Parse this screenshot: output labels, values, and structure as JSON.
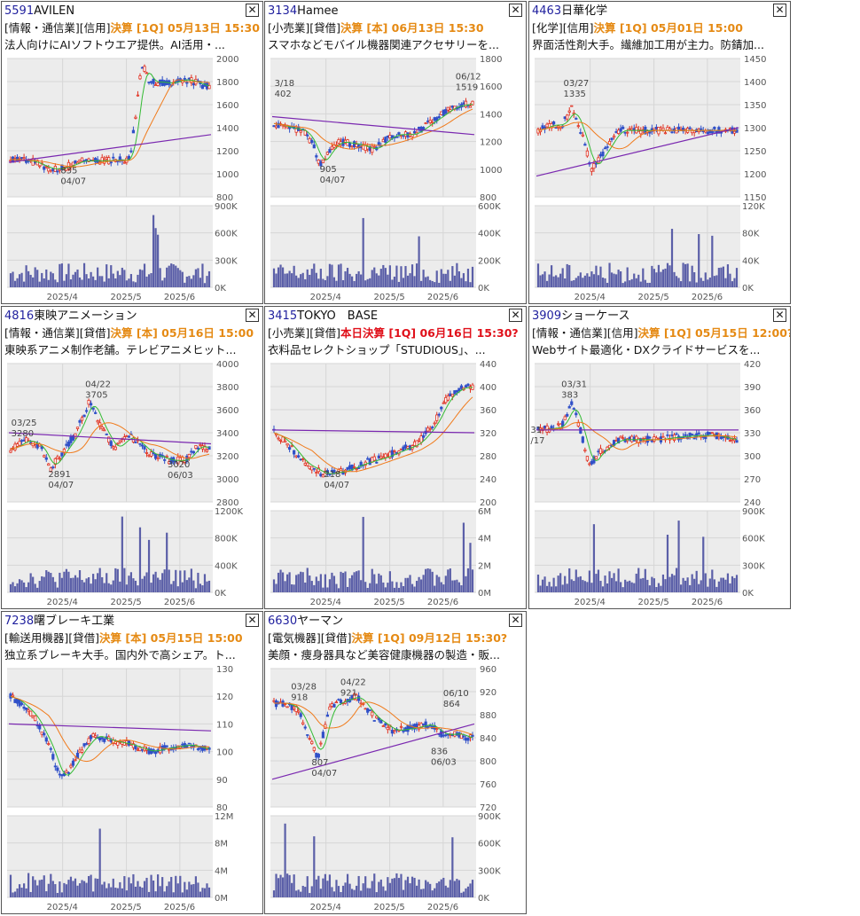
{
  "colors": {
    "code": "#1f1f9e",
    "earnings": "#e58a14",
    "earnings_today": "#e0101a",
    "ma_short": "#33bb33",
    "ma_mid": "#f07a1a",
    "ma_long": "#7a28b0",
    "candle_up": "#e03020",
    "candle_down": "#3050c8",
    "volume": "#5b5fa8",
    "plot_bg": "#ececec"
  },
  "x_labels": [
    "2025/4",
    "2025/5",
    "2025/6"
  ],
  "close_icon": "close-x-icon",
  "cards": [
    {
      "code": "5591",
      "name": "AVILEN",
      "tags": "[情報・通信業][信用]",
      "earnings": "決算 [1Q] 05月13日 15:30",
      "today": false,
      "desc": "法人向けにAIソフトウエア提供。AI活用・...",
      "price_ticks": [
        "2000",
        "1800",
        "1600",
        "1400",
        "1200",
        "1000",
        "800"
      ],
      "vol_ticks": [
        "900K",
        "600K",
        "300K",
        "0K"
      ],
      "annotations": [
        {
          "text": "835",
          "ann": "low"
        },
        {
          "text": "04/07",
          "ann": "low"
        }
      ]
    },
    {
      "code": "3134",
      "name": "Hamee",
      "tags": "[小売業][貸借]",
      "earnings": "決算 [本] 06月13日 15:30",
      "today": false,
      "desc": "スマホなどモバイル機器関連アクセサリーを...",
      "price_ticks": [
        "1800",
        "1600",
        "1400",
        "1200",
        "1000",
        "800"
      ],
      "vol_ticks": [
        "600K",
        "400K",
        "200K",
        "0K"
      ],
      "annotations": [
        {
          "text": "3/18",
          "ann": "a"
        },
        {
          "text": "402",
          "ann": "a"
        },
        {
          "text": "905",
          "ann": "b"
        },
        {
          "text": "04/07",
          "ann": "b"
        },
        {
          "text": "06/12",
          "ann": "c"
        },
        {
          "text": "1519",
          "ann": "c"
        }
      ]
    },
    {
      "code": "4463",
      "name": "日華化学",
      "tags": "[化学][信用]",
      "earnings": "決算 [1Q] 05月01日 15:00",
      "today": false,
      "desc": "界面活性剤大手。繊維加工用が主力。防錆加...",
      "price_ticks": [
        "1450",
        "1400",
        "1350",
        "1300",
        "1250",
        "1200",
        "1150"
      ],
      "vol_ticks": [
        "120K",
        "80K",
        "40K",
        "0K"
      ],
      "annotations": [
        {
          "text": "03/27",
          "ann": "a"
        },
        {
          "text": "1335",
          "ann": "a"
        }
      ]
    },
    {
      "code": "4816",
      "name": "東映アニメーション",
      "tags": "[情報・通信業][貸借]",
      "earnings": "決算 [本] 05月16日 15:00",
      "today": false,
      "desc": "東映系アニメ制作老舗。テレビアニメヒット...",
      "price_ticks": [
        "4000",
        "3800",
        "3600",
        "3400",
        "3200",
        "3000",
        "2800"
      ],
      "vol_ticks": [
        "1200K",
        "800K",
        "400K",
        "0K"
      ],
      "annotations": [
        {
          "text": "03/25",
          "ann": "a"
        },
        {
          "text": "3280",
          "ann": "a"
        },
        {
          "text": "04/22",
          "ann": "b"
        },
        {
          "text": "3705",
          "ann": "b"
        },
        {
          "text": "2891",
          "ann": "c"
        },
        {
          "text": "04/07",
          "ann": "c"
        },
        {
          "text": "3020",
          "ann": "d"
        },
        {
          "text": "06/03",
          "ann": "d"
        }
      ]
    },
    {
      "code": "3415",
      "name": "TOKYO　BASE",
      "tags": "[小売業][貸借]",
      "earnings": "本日決算 [1Q] 06月16日 15:30?",
      "today": true,
      "desc": "衣料品セレクトショップ「STUDIOUS」、...",
      "price_ticks": [
        "440",
        "400",
        "360",
        "320",
        "280",
        "240",
        "200"
      ],
      "vol_ticks": [
        "6M",
        "4M",
        "2M",
        "0M"
      ],
      "annotations": [
        {
          "text": "218",
          "ann": "a"
        },
        {
          "text": "04/07",
          "ann": "a"
        }
      ]
    },
    {
      "code": "3909",
      "name": "ショーケース",
      "tags": "[情報・通信業][信用]",
      "earnings": "決算 [1Q] 05月15日 12:00?",
      "today": false,
      "desc": "Webサイト最適化・DXクライドサービスを...",
      "price_ticks": [
        "420",
        "390",
        "360",
        "330",
        "300",
        "270",
        "240"
      ],
      "vol_ticks": [
        "900K",
        "600K",
        "300K",
        "0K"
      ],
      "annotations": [
        {
          "text": "03/31",
          "ann": "a"
        },
        {
          "text": "383",
          "ann": "a"
        },
        {
          "text": "31",
          "ann": "b"
        },
        {
          "text": "/17",
          "ann": "b"
        }
      ]
    },
    {
      "code": "7238",
      "name": "曙ブレーキ工業",
      "tags": "[輸送用機器][貸借]",
      "earnings": "決算 [本] 05月15日 15:00",
      "today": false,
      "desc": "独立系ブレーキ大手。国内外で高シェア。ト...",
      "price_ticks": [
        "130",
        "120",
        "110",
        "100",
        "90",
        "80"
      ],
      "vol_ticks": [
        "12M",
        "8M",
        "4M",
        "0M"
      ],
      "annotations": []
    },
    {
      "code": "6630",
      "name": "ヤーマン",
      "tags": "[電気機器][貸借]",
      "earnings": "決算 [1Q] 09月12日 15:30?",
      "today": false,
      "desc": "美顔・痩身器具など美容健康機器の製造・販...",
      "price_ticks": [
        "960",
        "920",
        "880",
        "840",
        "800",
        "760",
        "720"
      ],
      "vol_ticks": [
        "900K",
        "600K",
        "300K",
        "0K"
      ],
      "annotations": [
        {
          "text": "03/28",
          "ann": "a"
        },
        {
          "text": "918",
          "ann": "a"
        },
        {
          "text": "04/22",
          "ann": "b"
        },
        {
          "text": "921",
          "ann": "b"
        },
        {
          "text": "807",
          "ann": "c"
        },
        {
          "text": "04/07",
          "ann": "c"
        },
        {
          "text": "06/10",
          "ann": "d"
        },
        {
          "text": "864",
          "ann": "d"
        },
        {
          "text": "836",
          "ann": "e"
        },
        {
          "text": "06/03",
          "ann": "e"
        }
      ]
    }
  ]
}
